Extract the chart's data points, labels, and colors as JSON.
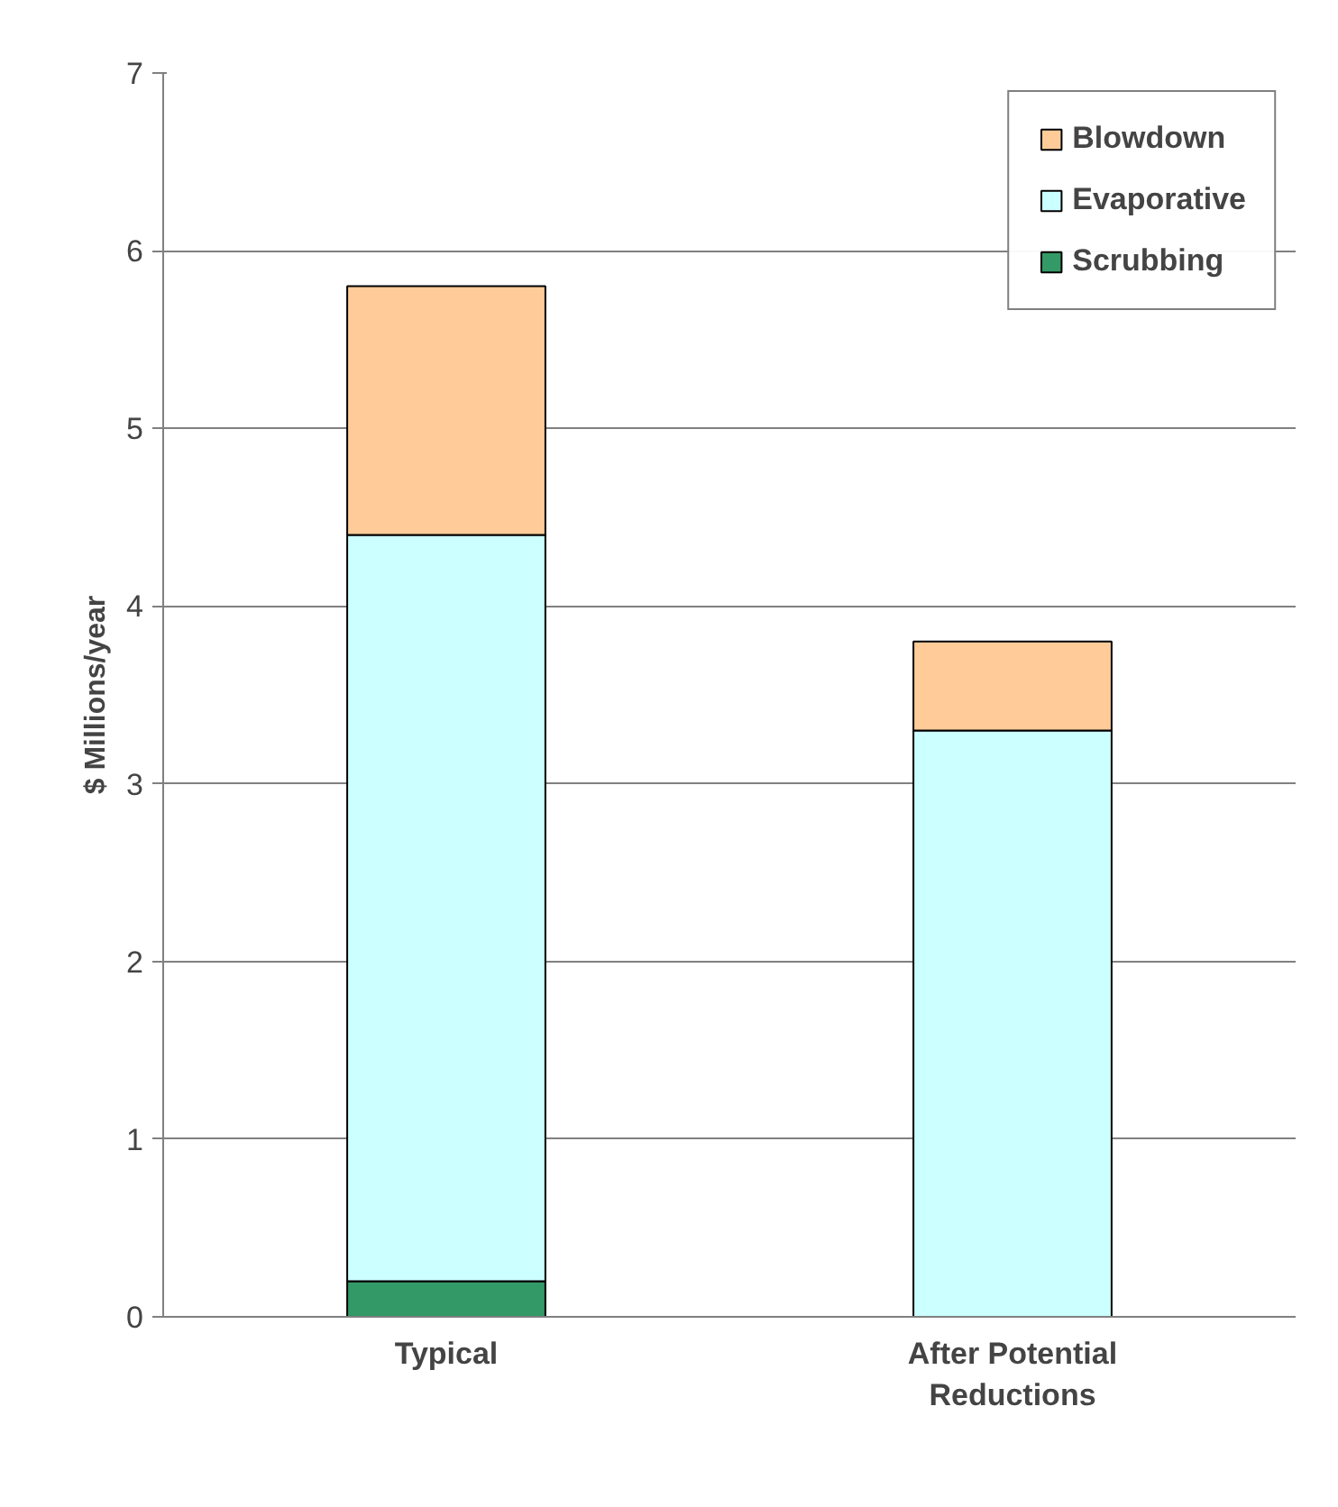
{
  "chart_data": {
    "type": "bar",
    "stacked": true,
    "ylabel": "$ Millions/year",
    "categories": [
      "Typical",
      "After Potential Reductions"
    ],
    "series": [
      {
        "name": "Scrubbing",
        "color": "#339966",
        "values": [
          0.2,
          0
        ]
      },
      {
        "name": "Evaporative",
        "color": "#ccffff",
        "values": [
          4.2,
          3.3
        ]
      },
      {
        "name": "Blowdown",
        "color": "#ffcc99",
        "values": [
          1.4,
          0.5
        ]
      }
    ],
    "ylim": [
      0,
      7
    ],
    "yticks": [
      0,
      1,
      2,
      3,
      4,
      5,
      6,
      7
    ],
    "grid": "y",
    "legend": "top right"
  }
}
